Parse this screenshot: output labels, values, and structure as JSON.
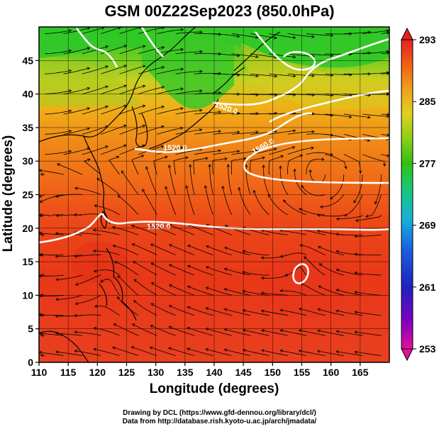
{
  "title": "GSM 00Z22Sep2023 (850.0hPa)",
  "x_axis": {
    "label": "Longitude (degrees)",
    "ticks": [
      "110",
      "115",
      "120",
      "125",
      "130",
      "135",
      "140",
      "145",
      "150",
      "155",
      "160",
      "165"
    ]
  },
  "y_axis": {
    "label": "Latitude  (degrees)",
    "ticks": [
      "0",
      "5",
      "10",
      "15",
      "20",
      "25",
      "30",
      "35",
      "40",
      "45"
    ]
  },
  "colorbar": {
    "ticks": [
      "293",
      "285",
      "277",
      "269",
      "261",
      "253"
    ],
    "stops": [
      "#e0109a",
      "#8000c0",
      "#2020c0",
      "#1860e0",
      "#18b0d8",
      "#18c878",
      "#30c010",
      "#8ad018",
      "#e0d020",
      "#f0a018",
      "#f06018",
      "#e82020"
    ]
  },
  "contours": {
    "labels": [
      "1520.0",
      "1520.0",
      "1560.0",
      "1520.0"
    ]
  },
  "credits": {
    "line1": "Drawing by DCL (https://www.gfd-dennou.org/library/dcl/)",
    "line2": "Data from http://database.rish.kyoto-u.ac.jp/arch/jmadata/"
  },
  "colors": {
    "warm": "#e83818",
    "orange": "#f07818",
    "yellow": "#e8c820",
    "green": "#40c020",
    "contour": "#ffffff",
    "coast": "#000000"
  }
}
